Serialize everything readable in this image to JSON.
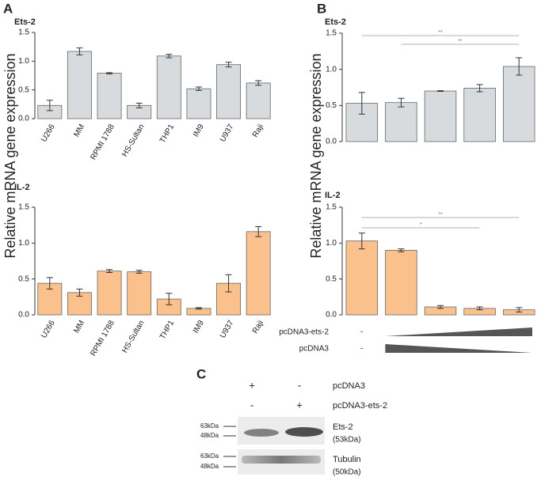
{
  "panel_labels": [
    "A",
    "B",
    "C"
  ],
  "chart_data": [
    {
      "type": "bar",
      "title": "Ets-2",
      "y_label": "Relative mRNA gene expression",
      "categories": [
        "U266",
        "MM",
        "RPMI 1788",
        "HS-Sultan",
        "THP1",
        "IM9",
        "U937",
        "Raji"
      ],
      "values": [
        0.23,
        1.17,
        0.79,
        0.23,
        1.09,
        0.52,
        0.94,
        0.62
      ],
      "errors": [
        0.09,
        0.06,
        0.01,
        0.04,
        0.03,
        0.03,
        0.04,
        0.04
      ],
      "color": "#d7dbde",
      "ylim": [
        0,
        1.5
      ],
      "yticks": [
        {
          "value": 0,
          "label": "0.0"
        },
        0.5,
        {
          "value": 1,
          "label": "1.0"
        },
        1.5
      ]
    },
    {
      "type": "bar",
      "title": "IL-2",
      "categories": [
        "U266",
        "MM",
        "RPMI 1788",
        "HS-Sultan",
        "THP1",
        "IM9",
        "U937",
        "Raji"
      ],
      "values": [
        0.44,
        0.31,
        0.61,
        0.6,
        0.22,
        0.09,
        0.44,
        1.16
      ],
      "errors": [
        0.08,
        0.05,
        0.02,
        0.02,
        0.08,
        0.01,
        0.12,
        0.07
      ],
      "color": "#fbc18d",
      "ylim": [
        0,
        1.5
      ],
      "yticks": [
        {
          "value": 0,
          "label": "0.0"
        },
        0.5,
        {
          "value": 1,
          "label": "1.0"
        },
        1.5
      ]
    },
    {
      "type": "bar",
      "title": "Ets-2",
      "y_label": "Relative mRNA gene expression",
      "values": [
        0.53,
        0.54,
        0.7,
        0.74,
        1.04
      ],
      "errors": [
        0.15,
        0.06,
        0.005,
        0.05,
        0.12
      ],
      "color": "#d7dbde",
      "ylim": [
        0,
        1.5
      ],
      "yticks": [
        {
          "value": 0,
          "label": "0.0"
        },
        0.5,
        {
          "value": 1,
          "label": "1.0"
        },
        1.5
      ],
      "annotations": [
        "**",
        "**"
      ]
    },
    {
      "type": "bar",
      "title": "IL-2",
      "values": [
        1.03,
        0.9,
        0.11,
        0.09,
        0.07
      ],
      "errors": [
        0.11,
        0.02,
        0.02,
        0.02,
        0.03
      ],
      "color": "#fbc18d",
      "ylim": [
        0,
        1.5
      ],
      "yticks": [
        {
          "value": 0,
          "label": "0.0"
        },
        0.5,
        {
          "value": 1,
          "label": "1.0"
        },
        1.5
      ],
      "annotations": [
        "**",
        "*"
      ],
      "treatments": [
        {
          "label": "pcDNA3-ets-2",
          "control": "-"
        },
        {
          "label": "pcDNA3",
          "control": "-"
        }
      ]
    }
  ],
  "blot": {
    "conditions": [
      {
        "name": "pcDNA3",
        "signs": [
          "+",
          "-"
        ]
      },
      {
        "name": "pcDNA3-ets-2",
        "signs": [
          "-",
          "+"
        ]
      }
    ],
    "rows": [
      {
        "protein": "Ets-2",
        "size": "(53kDa)",
        "markers": [
          "63kDa",
          "48kDa"
        ]
      },
      {
        "protein": "Tubulin",
        "size": "(50kDa)",
        "markers": [
          "63kDa",
          "48kDa"
        ]
      }
    ]
  }
}
